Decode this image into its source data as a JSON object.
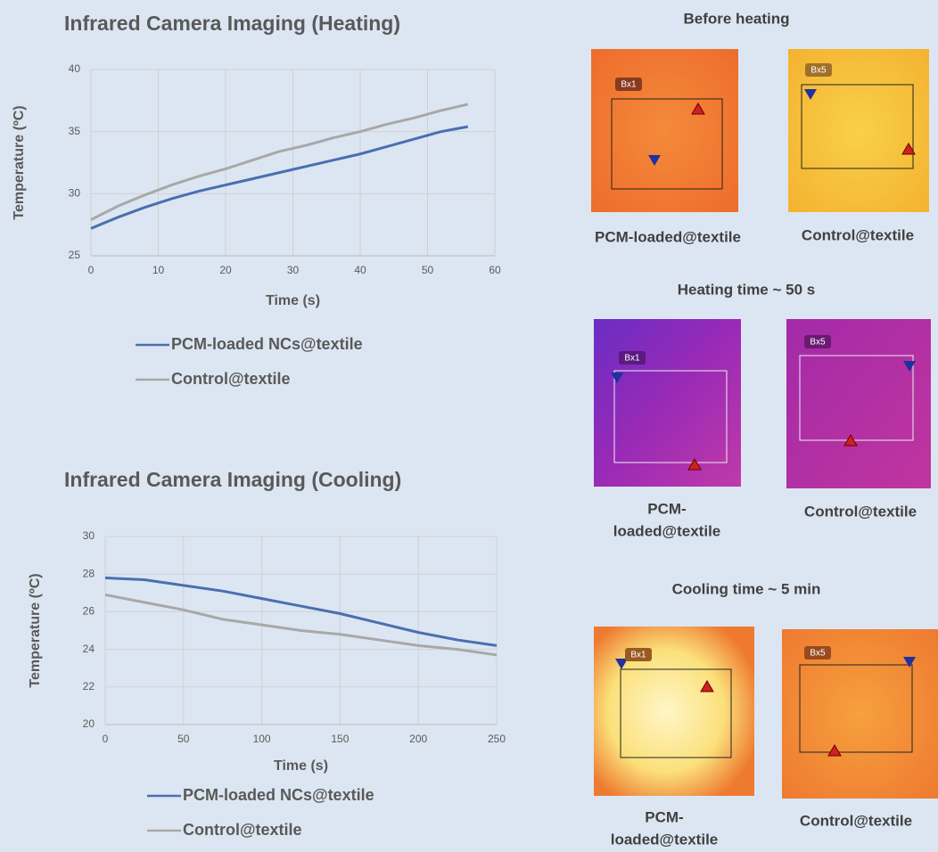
{
  "chart_data": [
    {
      "type": "line",
      "title": "Infrared Camera Imaging (Heating)",
      "x_label": "Time (s)",
      "y_label": "Temperature (ºC)",
      "x": [
        0,
        4,
        8,
        12,
        16,
        20,
        24,
        28,
        32,
        36,
        40,
        44,
        48,
        52,
        56
      ],
      "series": [
        {
          "name": "PCM-loaded NCs@textile",
          "color": "#4a6fb0",
          "values": [
            27.2,
            28.1,
            28.9,
            29.6,
            30.2,
            30.7,
            31.2,
            31.7,
            32.2,
            32.7,
            33.2,
            33.8,
            34.4,
            35.0,
            35.4
          ]
        },
        {
          "name": "Control@textile",
          "color": "#a8a8a8",
          "values": [
            27.9,
            29.0,
            29.9,
            30.7,
            31.4,
            32.0,
            32.7,
            33.4,
            33.9,
            34.5,
            35.0,
            35.6,
            36.1,
            36.7,
            37.2
          ]
        }
      ],
      "xlim": [
        0,
        60
      ],
      "xticks": [
        0,
        10,
        20,
        30,
        40,
        50,
        60
      ],
      "ylim": [
        25,
        40
      ],
      "yticks": [
        25,
        30,
        35,
        40
      ],
      "grid": true
    },
    {
      "type": "line",
      "title": "Infrared Camera Imaging (Cooling)",
      "x_label": "Time (s)",
      "y_label": "Temperature (ºC)",
      "x": [
        0,
        25,
        50,
        75,
        100,
        125,
        150,
        175,
        200,
        225,
        250
      ],
      "series": [
        {
          "name": "PCM-loaded NCs@textile",
          "color": "#4a6fb0",
          "values": [
            27.8,
            27.7,
            27.4,
            27.1,
            26.7,
            26.3,
            25.9,
            25.4,
            24.9,
            24.5,
            24.2
          ]
        },
        {
          "name": "Control@textile",
          "color": "#a8a8a8",
          "values": [
            26.9,
            26.5,
            26.1,
            25.6,
            25.3,
            25.0,
            24.8,
            24.5,
            24.2,
            24.0,
            23.7
          ]
        }
      ],
      "xlim": [
        0,
        250
      ],
      "xticks": [
        0,
        50,
        100,
        150,
        200,
        250
      ],
      "ylim": [
        20,
        30
      ],
      "yticks": [
        20,
        22,
        24,
        26,
        28,
        30
      ],
      "grid": true
    }
  ],
  "panels": [
    {
      "title": "Before heating",
      "images": [
        {
          "box": "Bx1",
          "caption": [
            "PCM-loaded@textile"
          ]
        },
        {
          "box": "Bx5",
          "caption": [
            "Control@textile"
          ]
        }
      ]
    },
    {
      "title": "Heating time ~ 50 s",
      "images": [
        {
          "box": "Bx1",
          "caption": [
            "PCM-",
            "loaded@textile"
          ]
        },
        {
          "box": "Bx5",
          "caption": [
            "Control@textile"
          ]
        }
      ]
    },
    {
      "title": "Cooling time ~ 5 min",
      "images": [
        {
          "box": "Bx1",
          "caption": [
            "PCM-",
            "loaded@textile"
          ]
        },
        {
          "box": "Bx5",
          "caption": [
            "Control@textile"
          ]
        }
      ]
    }
  ]
}
